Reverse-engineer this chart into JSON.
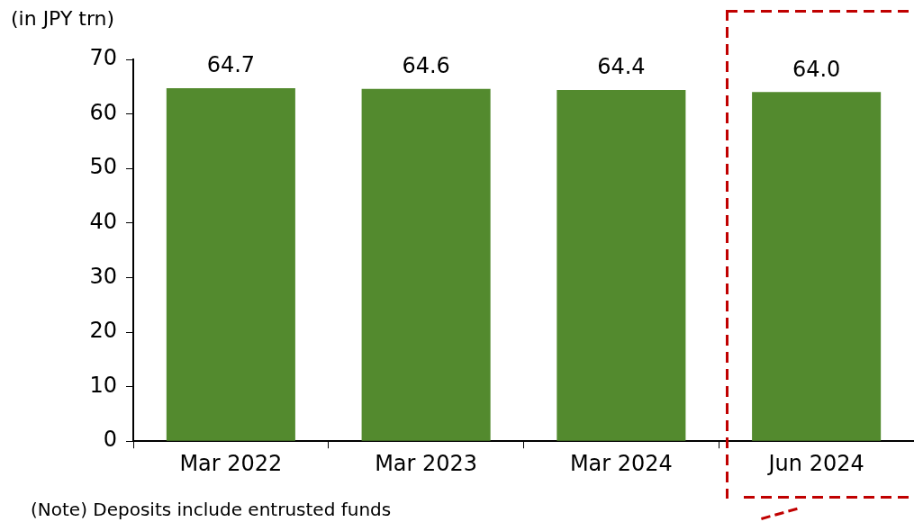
{
  "chart_data": {
    "type": "bar",
    "ylabel": "(in JPY trn)",
    "categories": [
      "Mar 2022",
      "Mar 2023",
      "Mar 2024",
      "Jun 2024"
    ],
    "values": [
      64.7,
      64.6,
      64.4,
      64.0
    ],
    "value_labels": [
      "64.7",
      "64.6",
      "64.4",
      "64.0"
    ],
    "color": "#538a2e",
    "ylim": [
      0,
      70
    ],
    "yticks": [
      0,
      10,
      20,
      30,
      40,
      50,
      60,
      70
    ],
    "grid": false,
    "legend": false,
    "annotations": [
      "(Note) Deposits include entrusted funds"
    ]
  }
}
